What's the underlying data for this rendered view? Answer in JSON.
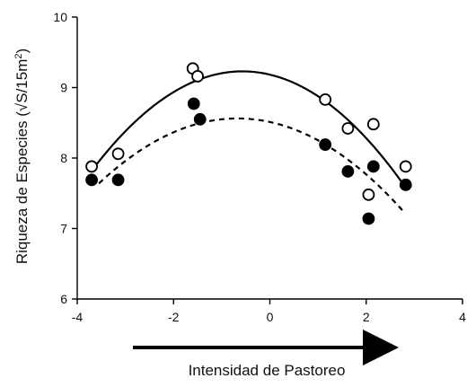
{
  "chart_data": {
    "type": "scatter",
    "title": "",
    "xlabel": "Intensidad de Pastoreo",
    "ylabel_prefix": "Riqueza de Especies (√S/15m",
    "ylabel_sup": "2",
    "ylabel_suffix": ")",
    "xlim": [
      -4,
      4
    ],
    "ylim": [
      6,
      10
    ],
    "x_ticks": [
      -4,
      -2,
      0,
      2,
      4
    ],
    "y_ticks": [
      6,
      7,
      8,
      9,
      10
    ],
    "x_tick_labels": [
      "-4",
      "-2",
      "0",
      "2",
      "4"
    ],
    "y_tick_labels": [
      "6",
      "7",
      "8",
      "9",
      "10"
    ],
    "grid": false,
    "legend": "none",
    "arrow_direction": "right",
    "series": [
      {
        "marker": "open-circle",
        "line_style": "solid",
        "points": [
          {
            "x": -3.7,
            "y": 7.88
          },
          {
            "x": -3.15,
            "y": 8.06
          },
          {
            "x": -1.6,
            "y": 9.27
          },
          {
            "x": -1.5,
            "y": 9.16
          },
          {
            "x": 1.15,
            "y": 8.83
          },
          {
            "x": 1.62,
            "y": 8.42
          },
          {
            "x": 2.05,
            "y": 7.48
          },
          {
            "x": 2.15,
            "y": 8.48
          },
          {
            "x": 2.82,
            "y": 7.88
          }
        ],
        "fit": {
          "type": "quadratic",
          "x_range": [
            -3.7,
            2.82
          ],
          "x": [
            -3.7,
            -0.6,
            2.82
          ],
          "y": [
            7.82,
            9.23,
            7.58
          ]
        }
      },
      {
        "marker": "filled-circle",
        "line_style": "dashed",
        "points": [
          {
            "x": -3.7,
            "y": 7.69
          },
          {
            "x": -3.15,
            "y": 7.69
          },
          {
            "x": -1.58,
            "y": 8.77
          },
          {
            "x": -1.45,
            "y": 8.55
          },
          {
            "x": 1.15,
            "y": 8.19
          },
          {
            "x": 1.62,
            "y": 7.81
          },
          {
            "x": 2.05,
            "y": 7.14
          },
          {
            "x": 2.15,
            "y": 7.88
          },
          {
            "x": 2.82,
            "y": 7.62
          }
        ],
        "fit": {
          "type": "quadratic",
          "x_range": [
            -3.55,
            2.75
          ],
          "x": [
            -3.55,
            -0.8,
            2.75
          ],
          "y": [
            7.64,
            8.56,
            7.26
          ]
        }
      }
    ]
  }
}
